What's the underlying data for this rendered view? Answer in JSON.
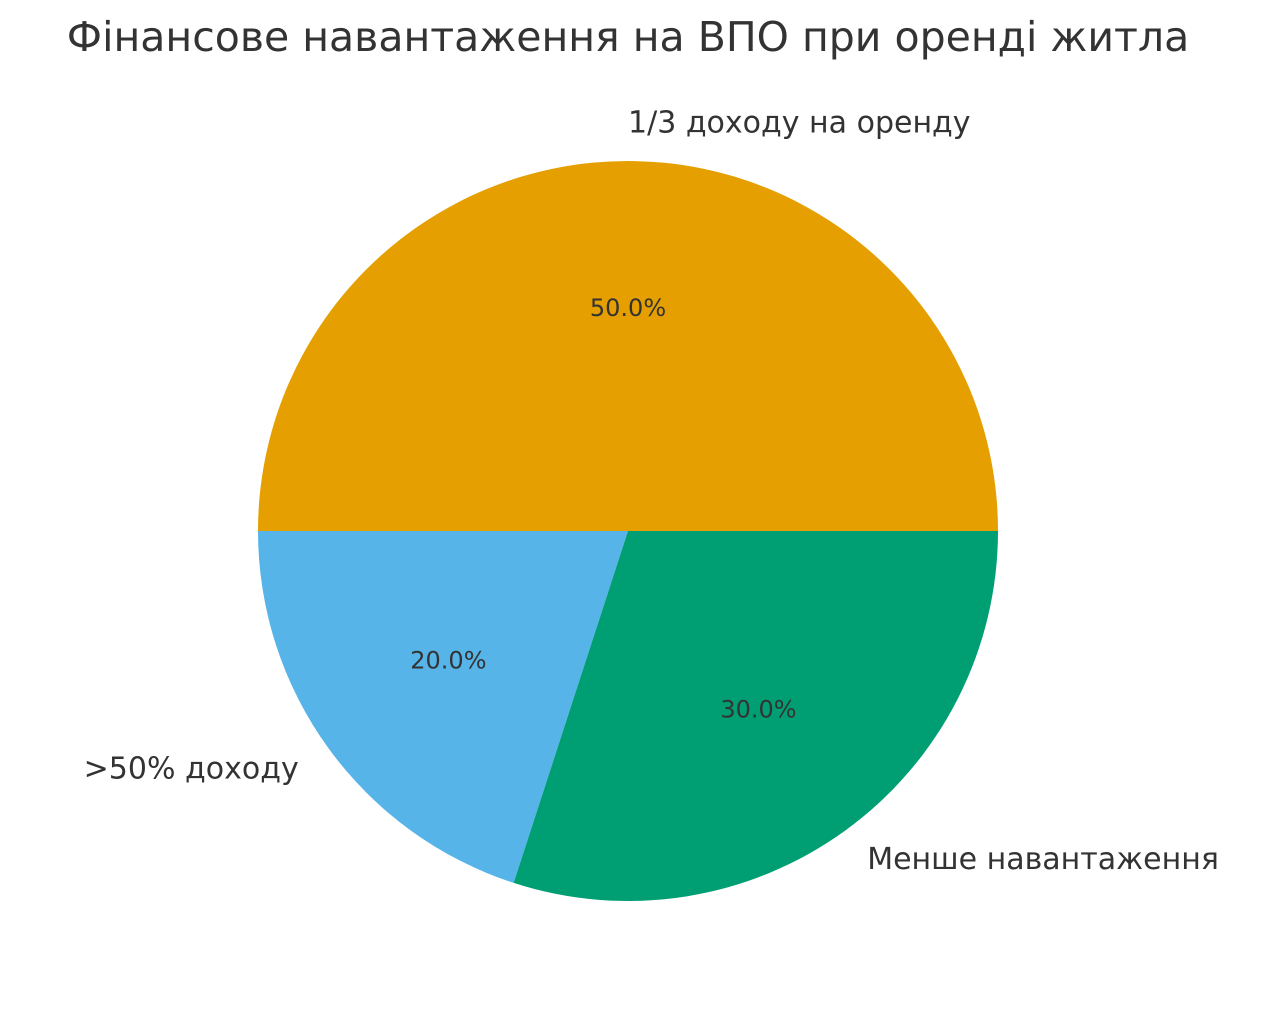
{
  "chart_data": {
    "type": "pie",
    "title": "Фінансове навантаження на ВПО при оренді житла",
    "categories": [
      "1/3 доходу на оренду",
      ">50% доходу",
      "Менше навантаження"
    ],
    "values": [
      50,
      20,
      30
    ],
    "value_labels": [
      "50.0%",
      "20.0%",
      "30.0%"
    ],
    "colors": [
      "#e69f00",
      "#56b4e9",
      "#009e73"
    ]
  }
}
